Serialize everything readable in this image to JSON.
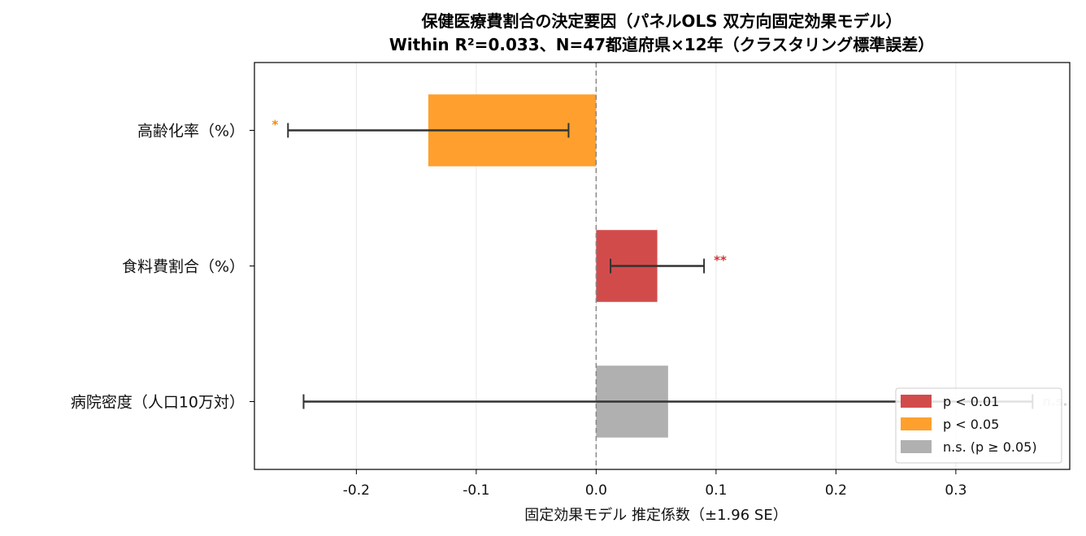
{
  "chart_data": {
    "type": "bar",
    "orientation": "horizontal",
    "title": "保健医療費割合の決定要因（パネルOLS 双方向固定効果モデル）",
    "subtitle": "Within R²=0.033、N=47都道府県×12年（クラスタリング標準誤差）",
    "xlabel": "固定効果モデル 推定係数（±1.96 SE）",
    "ylabel": "",
    "xlim": [
      -0.285,
      0.395
    ],
    "xticks": [
      -0.2,
      -0.1,
      0.0,
      0.1,
      0.2,
      0.3
    ],
    "xtick_labels": [
      "-0.2",
      "-0.1",
      "0.0",
      "0.1",
      "0.2",
      "0.3"
    ],
    "grid": "x",
    "zero_line": true,
    "legend_position": "lower-right",
    "categories": [
      "高齢化率（%）",
      "食料費割合（%）",
      "病院密度（人口10万対）"
    ],
    "values": [
      -0.14,
      0.051,
      0.06
    ],
    "ci_low": [
      -0.257,
      0.012,
      -0.244
    ],
    "ci_high": [
      -0.023,
      0.09,
      0.364
    ],
    "significance": [
      "*",
      "**",
      "n.s."
    ],
    "bar_groups": [
      "p05",
      "p01",
      "ns"
    ],
    "legend": [
      {
        "key": "p01",
        "label": "p < 0.01",
        "color": "#d24b4b"
      },
      {
        "key": "p05",
        "label": "p < 0.05",
        "color": "#ffa02e"
      },
      {
        "key": "ns",
        "label": "n.s. (p ≥ 0.05)",
        "color": "#b0b0b0"
      }
    ],
    "colors": {
      "p01": "#d24b4b",
      "p05": "#ffa02e",
      "ns": "#b0b0b0",
      "errorbar": "#333333"
    },
    "sig_colors": {
      "**": "#d03434",
      "*": "#f08c00",
      "n.s.": "#cfcfcf"
    }
  }
}
